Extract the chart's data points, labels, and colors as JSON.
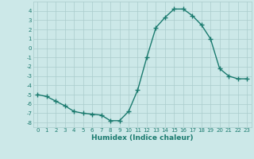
{
  "x": [
    0,
    1,
    2,
    3,
    4,
    5,
    6,
    7,
    8,
    9,
    10,
    11,
    12,
    13,
    14,
    15,
    16,
    17,
    18,
    19,
    20,
    21,
    22,
    23
  ],
  "y": [
    -5.0,
    -5.2,
    -5.7,
    -6.2,
    -6.8,
    -7.0,
    -7.1,
    -7.2,
    -7.8,
    -7.8,
    -6.8,
    -4.5,
    -1.0,
    2.2,
    3.3,
    4.2,
    4.2,
    3.5,
    2.5,
    1.0,
    -2.2,
    -3.0,
    -3.3,
    -3.3
  ],
  "xlabel": "Humidex (Indice chaleur)",
  "ylim": [
    -8.5,
    5.0
  ],
  "xlim": [
    -0.5,
    23.5
  ],
  "line_color": "#1a7a6e",
  "bg_color": "#cce8e8",
  "grid_color": "#aacccc",
  "xlabel_color": "#1a7a6e",
  "tick_color": "#1a7a6e",
  "yticks": [
    -8,
    -7,
    -6,
    -5,
    -4,
    -3,
    -2,
    -1,
    0,
    1,
    2,
    3,
    4
  ],
  "xticks": [
    0,
    1,
    2,
    3,
    4,
    5,
    6,
    7,
    8,
    9,
    10,
    11,
    12,
    13,
    14,
    15,
    16,
    17,
    18,
    19,
    20,
    21,
    22,
    23
  ],
  "marker": "+",
  "linewidth": 1.0,
  "markersize": 4,
  "tick_fontsize": 5,
  "xlabel_fontsize": 6.5
}
